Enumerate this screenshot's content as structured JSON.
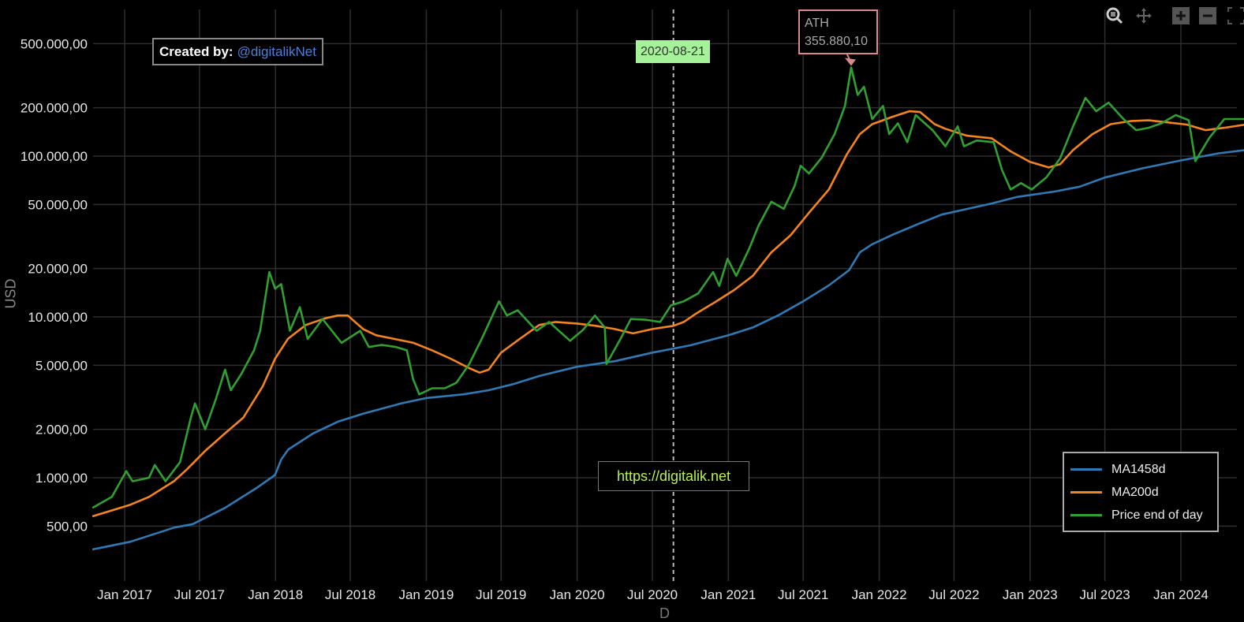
{
  "chart_data": {
    "type": "line",
    "title": "",
    "xlabel": "D",
    "ylabel": "USD",
    "yscale": "log",
    "ylim": [
      300,
      600000
    ],
    "xlim": [
      "2016-10-10",
      "2024-06-08"
    ],
    "grid": true,
    "legend_position": "bottom-right",
    "yticks": [
      {
        "value": 500000,
        "label": "500.000,00"
      },
      {
        "value": 200000,
        "label": "200.000,00"
      },
      {
        "value": 100000,
        "label": "100.000,00"
      },
      {
        "value": 50000,
        "label": "50.000,00"
      },
      {
        "value": 20000,
        "label": "20.000,00"
      },
      {
        "value": 10000,
        "label": "10.000,00"
      },
      {
        "value": 5000,
        "label": "5.000,00"
      },
      {
        "value": 2000,
        "label": "2.000,00"
      },
      {
        "value": 1000,
        "label": "1.000,00"
      },
      {
        "value": 500,
        "label": "500,00"
      }
    ],
    "xticks": [
      {
        "date": "2017-01-01",
        "label": "Jan 2017"
      },
      {
        "date": "2017-07-01",
        "label": "Jul 2017"
      },
      {
        "date": "2018-01-01",
        "label": "Jan 2018"
      },
      {
        "date": "2018-07-01",
        "label": "Jul 2018"
      },
      {
        "date": "2019-01-01",
        "label": "Jan 2019"
      },
      {
        "date": "2019-07-01",
        "label": "Jul 2019"
      },
      {
        "date": "2020-01-01",
        "label": "Jan 2020"
      },
      {
        "date": "2020-07-01",
        "label": "Jul 2020"
      },
      {
        "date": "2021-01-01",
        "label": "Jan 2021"
      },
      {
        "date": "2021-07-01",
        "label": "Jul 2021"
      },
      {
        "date": "2022-01-01",
        "label": "Jan 2022"
      },
      {
        "date": "2022-07-01",
        "label": "Jul 2022"
      },
      {
        "date": "2023-01-01",
        "label": "Jan 2023"
      },
      {
        "date": "2023-07-01",
        "label": "Jul 2023"
      },
      {
        "date": "2024-01-01",
        "label": "Jan 2024"
      }
    ],
    "series": [
      {
        "name": "MA1458d",
        "color": "#2f7ab5",
        "points": [
          [
            "2016-10-15",
            358
          ],
          [
            "2017-01-15",
            400
          ],
          [
            "2017-05-01",
            490
          ],
          [
            "2017-06-15",
            515
          ],
          [
            "2017-09-01",
            650
          ],
          [
            "2017-11-15",
            860
          ],
          [
            "2017-12-31",
            1040
          ],
          [
            "2018-01-15",
            1300
          ],
          [
            "2018-02-01",
            1500
          ],
          [
            "2018-04-01",
            1880
          ],
          [
            "2018-06-01",
            2230
          ],
          [
            "2018-08-01",
            2500
          ],
          [
            "2018-11-01",
            2900
          ],
          [
            "2019-01-01",
            3130
          ],
          [
            "2019-04-01",
            3300
          ],
          [
            "2019-06-01",
            3500
          ],
          [
            "2019-08-01",
            3830
          ],
          [
            "2019-10-01",
            4290
          ],
          [
            "2020-01-01",
            4900
          ],
          [
            "2020-04-01",
            5300
          ],
          [
            "2020-07-01",
            6000
          ],
          [
            "2020-10-01",
            6660
          ],
          [
            "2021-01-01",
            7700
          ],
          [
            "2021-03-01",
            8600
          ],
          [
            "2021-05-01",
            10200
          ],
          [
            "2021-07-01",
            12500
          ],
          [
            "2021-09-01",
            15700
          ],
          [
            "2021-10-20",
            19500
          ],
          [
            "2021-11-15",
            25200
          ],
          [
            "2021-12-15",
            28300
          ],
          [
            "2022-02-01",
            32300
          ],
          [
            "2022-04-01",
            37400
          ],
          [
            "2022-06-01",
            43300
          ],
          [
            "2022-08-01",
            46900
          ],
          [
            "2022-10-01",
            50800
          ],
          [
            "2022-12-01",
            55700
          ],
          [
            "2023-03-01",
            60200
          ],
          [
            "2023-05-01",
            64500
          ],
          [
            "2023-07-01",
            73600
          ],
          [
            "2023-10-01",
            84000
          ],
          [
            "2024-01-01",
            94000
          ],
          [
            "2024-04-01",
            104000
          ],
          [
            "2024-06-05",
            109000
          ]
        ]
      },
      {
        "name": "MA200d",
        "color": "#f5841f",
        "points": [
          [
            "2016-10-15",
            575
          ],
          [
            "2017-01-15",
            680
          ],
          [
            "2017-03-01",
            760
          ],
          [
            "2017-05-01",
            955
          ],
          [
            "2017-06-01",
            1130
          ],
          [
            "2017-07-15",
            1470
          ],
          [
            "2017-09-01",
            1890
          ],
          [
            "2017-10-15",
            2360
          ],
          [
            "2017-12-01",
            3700
          ],
          [
            "2017-12-31",
            5500
          ],
          [
            "2018-01-31",
            7300
          ],
          [
            "2018-03-15",
            8900
          ],
          [
            "2018-05-01",
            9800
          ],
          [
            "2018-06-01",
            10200
          ],
          [
            "2018-06-25",
            10200
          ],
          [
            "2018-08-01",
            8400
          ],
          [
            "2018-09-01",
            7700
          ],
          [
            "2018-10-15",
            7300
          ],
          [
            "2018-12-01",
            6900
          ],
          [
            "2019-01-15",
            6200
          ],
          [
            "2019-03-01",
            5500
          ],
          [
            "2019-04-15",
            4800
          ],
          [
            "2019-05-10",
            4500
          ],
          [
            "2019-06-01",
            4700
          ],
          [
            "2019-07-01",
            6000
          ],
          [
            "2019-08-15",
            7300
          ],
          [
            "2019-10-01",
            8900
          ],
          [
            "2019-11-10",
            9300
          ],
          [
            "2020-01-01",
            9100
          ],
          [
            "2020-02-15",
            8800
          ],
          [
            "2020-04-01",
            8400
          ],
          [
            "2020-05-15",
            7900
          ],
          [
            "2020-07-01",
            8400
          ],
          [
            "2020-08-21",
            8800
          ],
          [
            "2020-09-15",
            9300
          ],
          [
            "2020-10-15",
            10500
          ],
          [
            "2020-12-01",
            12400
          ],
          [
            "2021-01-15",
            14700
          ],
          [
            "2021-03-01",
            18000
          ],
          [
            "2021-04-15",
            25200
          ],
          [
            "2021-06-01",
            32300
          ],
          [
            "2021-07-15",
            44400
          ],
          [
            "2021-09-01",
            62000
          ],
          [
            "2021-10-15",
            103000
          ],
          [
            "2021-11-15",
            137000
          ],
          [
            "2021-12-15",
            158000
          ],
          [
            "2022-02-01",
            175000
          ],
          [
            "2022-03-15",
            190000
          ],
          [
            "2022-04-10",
            188000
          ],
          [
            "2022-05-15",
            158000
          ],
          [
            "2022-06-10",
            148000
          ],
          [
            "2022-08-01",
            134000
          ],
          [
            "2022-09-30",
            129000
          ],
          [
            "2022-11-15",
            107000
          ],
          [
            "2023-01-01",
            92000
          ],
          [
            "2023-02-15",
            85000
          ],
          [
            "2023-03-15",
            89000
          ],
          [
            "2023-04-15",
            109000
          ],
          [
            "2023-06-01",
            137000
          ],
          [
            "2023-07-15",
            158000
          ],
          [
            "2023-09-01",
            165000
          ],
          [
            "2023-10-15",
            167000
          ],
          [
            "2023-12-01",
            162000
          ],
          [
            "2024-01-15",
            157000
          ],
          [
            "2024-03-01",
            145000
          ],
          [
            "2024-04-15",
            150000
          ],
          [
            "2024-06-05",
            157000
          ]
        ]
      },
      {
        "name": "Price end of day",
        "color": "#30a030",
        "points": [
          [
            "2016-10-15",
            650
          ],
          [
            "2016-12-01",
            760
          ],
          [
            "2017-01-05",
            1100
          ],
          [
            "2017-01-20",
            950
          ],
          [
            "2017-03-01",
            1000
          ],
          [
            "2017-03-15",
            1200
          ],
          [
            "2017-04-10",
            950
          ],
          [
            "2017-05-15",
            1250
          ],
          [
            "2017-06-10",
            2350
          ],
          [
            "2017-06-20",
            2900
          ],
          [
            "2017-07-15",
            2000
          ],
          [
            "2017-08-10",
            3100
          ],
          [
            "2017-09-01",
            4700
          ],
          [
            "2017-09-15",
            3500
          ],
          [
            "2017-10-10",
            4400
          ],
          [
            "2017-11-10",
            6200
          ],
          [
            "2017-11-25",
            8200
          ],
          [
            "2017-12-17",
            19000
          ],
          [
            "2017-12-31",
            15000
          ],
          [
            "2018-01-15",
            16000
          ],
          [
            "2018-02-05",
            8200
          ],
          [
            "2018-03-01",
            11500
          ],
          [
            "2018-03-20",
            7300
          ],
          [
            "2018-04-25",
            9700
          ],
          [
            "2018-06-10",
            6900
          ],
          [
            "2018-07-25",
            8200
          ],
          [
            "2018-08-15",
            6500
          ],
          [
            "2018-09-15",
            6700
          ],
          [
            "2018-10-20",
            6500
          ],
          [
            "2018-11-15",
            6200
          ],
          [
            "2018-11-30",
            4100
          ],
          [
            "2018-12-15",
            3300
          ],
          [
            "2019-01-15",
            3600
          ],
          [
            "2019-02-15",
            3600
          ],
          [
            "2019-03-15",
            3900
          ],
          [
            "2019-04-15",
            5100
          ],
          [
            "2019-05-15",
            7300
          ],
          [
            "2019-06-26",
            12500
          ],
          [
            "2019-07-15",
            10200
          ],
          [
            "2019-08-10",
            11000
          ],
          [
            "2019-09-25",
            8200
          ],
          [
            "2019-10-25",
            9300
          ],
          [
            "2019-12-15",
            7100
          ],
          [
            "2020-01-15",
            8300
          ],
          [
            "2020-02-13",
            10200
          ],
          [
            "2020-03-08",
            8600
          ],
          [
            "2020-03-12",
            5100
          ],
          [
            "2020-04-15",
            7300
          ],
          [
            "2020-05-10",
            9700
          ],
          [
            "2020-06-15",
            9600
          ],
          [
            "2020-07-20",
            9300
          ],
          [
            "2020-08-15",
            11800
          ],
          [
            "2020-09-15",
            12500
          ],
          [
            "2020-10-20",
            14000
          ],
          [
            "2020-11-25",
            19000
          ],
          [
            "2020-12-10",
            15600
          ],
          [
            "2020-12-30",
            23000
          ],
          [
            "2021-01-20",
            18000
          ],
          [
            "2021-02-20",
            26500
          ],
          [
            "2021-03-15",
            37000
          ],
          [
            "2021-04-15",
            52000
          ],
          [
            "2021-05-15",
            47000
          ],
          [
            "2021-06-10",
            65000
          ],
          [
            "2021-06-25",
            87000
          ],
          [
            "2021-07-15",
            78000
          ],
          [
            "2021-08-15",
            98000
          ],
          [
            "2021-09-15",
            137000
          ],
          [
            "2021-10-10",
            205000
          ],
          [
            "2021-10-25",
            355880.1
          ],
          [
            "2021-11-10",
            240000
          ],
          [
            "2021-11-25",
            270000
          ],
          [
            "2021-12-15",
            170000
          ],
          [
            "2022-01-10",
            205000
          ],
          [
            "2022-01-25",
            137000
          ],
          [
            "2022-02-15",
            160000
          ],
          [
            "2022-03-10",
            122000
          ],
          [
            "2022-03-30",
            180000
          ],
          [
            "2022-05-10",
            145000
          ],
          [
            "2022-06-10",
            115000
          ],
          [
            "2022-07-10",
            153000
          ],
          [
            "2022-07-25",
            115000
          ],
          [
            "2022-08-25",
            125000
          ],
          [
            "2022-10-05",
            122000
          ],
          [
            "2022-10-25",
            82000
          ],
          [
            "2022-11-15",
            62000
          ],
          [
            "2022-12-10",
            68000
          ],
          [
            "2023-01-05",
            62000
          ],
          [
            "2023-02-10",
            74000
          ],
          [
            "2023-03-15",
            97000
          ],
          [
            "2023-04-15",
            153000
          ],
          [
            "2023-05-15",
            230000
          ],
          [
            "2023-06-10",
            190000
          ],
          [
            "2023-07-10",
            215000
          ],
          [
            "2023-08-15",
            170000
          ],
          [
            "2023-09-15",
            145000
          ],
          [
            "2023-10-15",
            150000
          ],
          [
            "2023-11-15",
            160000
          ],
          [
            "2023-12-20",
            180000
          ],
          [
            "2024-01-20",
            167000
          ],
          [
            "2024-02-05",
            93000
          ],
          [
            "2024-03-10",
            130000
          ],
          [
            "2024-04-15",
            170000
          ],
          [
            "2024-05-15",
            170000
          ],
          [
            "2024-06-05",
            170000
          ]
        ]
      }
    ],
    "annotations": {
      "vline": {
        "date": "2020-08-21",
        "label": "2020-08-21",
        "color": "#a6f29a"
      },
      "ath": {
        "date": "2021-10-25",
        "value": 355880.1,
        "title": "ATH",
        "label": "355.880,10",
        "color": "#d98a8a"
      }
    }
  },
  "credits": {
    "prefix": "Created by:",
    "handle": "@digitalikNet"
  },
  "watermark": "https://digitalik.net",
  "toolbar": [
    "zoom-icon",
    "pan-icon",
    "zoom-in-icon",
    "zoom-out-icon",
    "reset-icon"
  ]
}
